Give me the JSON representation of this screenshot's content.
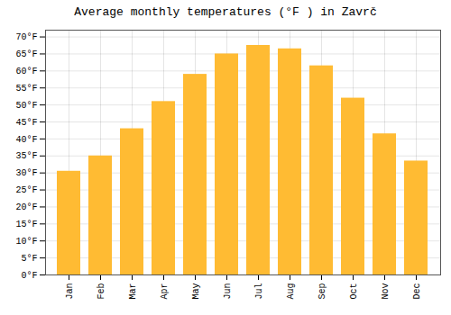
{
  "chart_data": {
    "type": "bar",
    "title": "Average monthly temperatures (°F ) in Zavrč",
    "categories": [
      "Jan",
      "Feb",
      "Mar",
      "Apr",
      "May",
      "Jun",
      "Jul",
      "Aug",
      "Sep",
      "Oct",
      "Nov",
      "Dec"
    ],
    "values": [
      30.5,
      35.0,
      43.0,
      51.0,
      59.0,
      65.0,
      67.5,
      66.5,
      61.5,
      52.0,
      41.5,
      33.5
    ],
    "color": "#FFBB33",
    "ylim": [
      0,
      72
    ],
    "yticks": [
      {
        "value": 0,
        "label": "0°F"
      },
      {
        "value": 5,
        "label": "5°F"
      },
      {
        "value": 10,
        "label": "10°F"
      },
      {
        "value": 15,
        "label": "15°F"
      },
      {
        "value": 20,
        "label": "20°F"
      },
      {
        "value": 25,
        "label": "25°F"
      },
      {
        "value": 30,
        "label": "30°F"
      },
      {
        "value": 35,
        "label": "35°F"
      },
      {
        "value": 40,
        "label": "40°F"
      },
      {
        "value": 45,
        "label": "45°F"
      },
      {
        "value": 50,
        "label": "50°F"
      },
      {
        "value": 55,
        "label": "55°F"
      },
      {
        "value": 60,
        "label": "60°F"
      },
      {
        "value": 65,
        "label": "65°F"
      },
      {
        "value": 70,
        "label": "70°F"
      }
    ],
    "grid": true
  }
}
